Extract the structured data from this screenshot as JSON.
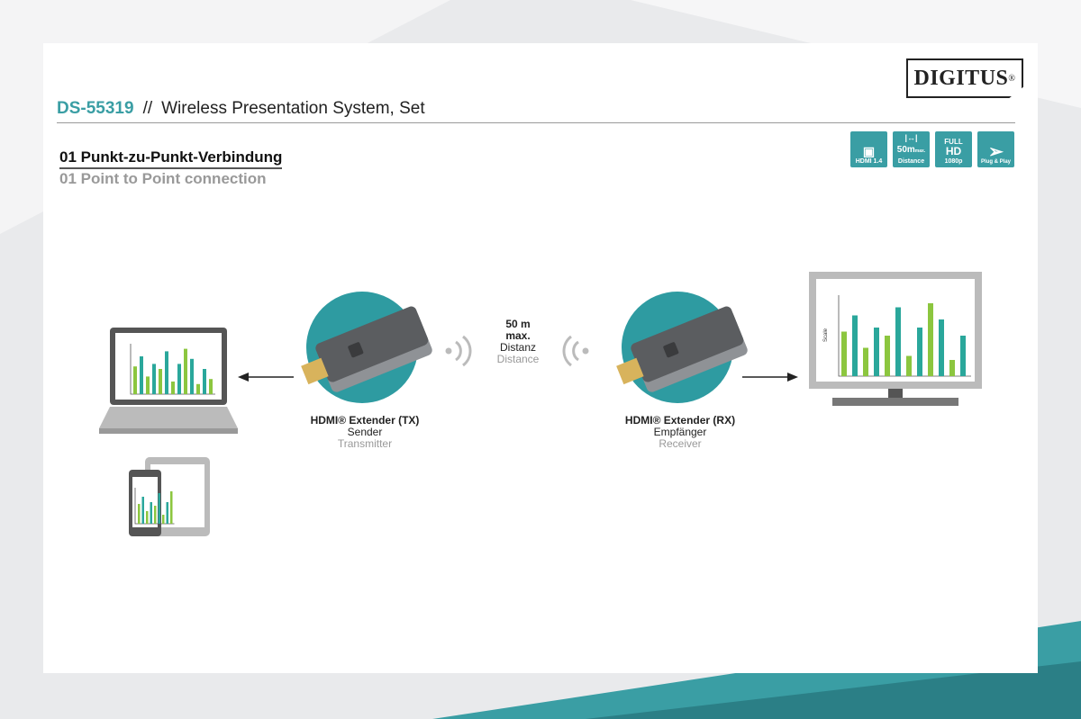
{
  "brand": {
    "logo": "DIGITUS",
    "reg": "®"
  },
  "header": {
    "code": "DS-55319",
    "separator": "//",
    "product": "Wireless Presentation System, Set"
  },
  "section": {
    "title_de": "01 Punkt-zu-Punkt-Verbindung",
    "title_en": "01 Point to Point connection"
  },
  "badges": [
    {
      "icon": "hdmi-port-icon",
      "label": "HDMI 1.4"
    },
    {
      "icon": "distance-arrows-icon",
      "value": "50m",
      "suffix": "max.",
      "label": "Distance"
    },
    {
      "value": "FULL",
      "value2": "HD",
      "label": "1080p"
    },
    {
      "icon": "plug-play-icon",
      "label": "Plug & Play"
    }
  ],
  "transmitter": {
    "name": "HDMI® Extender (TX)",
    "de": "Sender",
    "en": "Transmitter"
  },
  "receiver": {
    "name": "HDMI® Extender (RX)",
    "de": "Empfänger",
    "en": "Receiver"
  },
  "distance": {
    "value": "50 m",
    "qualifier": "max.",
    "de": "Distanz",
    "en": "Distance"
  },
  "monitor_chart": {
    "axis_label": "Scale"
  },
  "colors": {
    "accent": "#3a9ea4",
    "bar_teal": "#2aa79b",
    "bar_green": "#8cc63f",
    "device_grey": "#555555"
  }
}
